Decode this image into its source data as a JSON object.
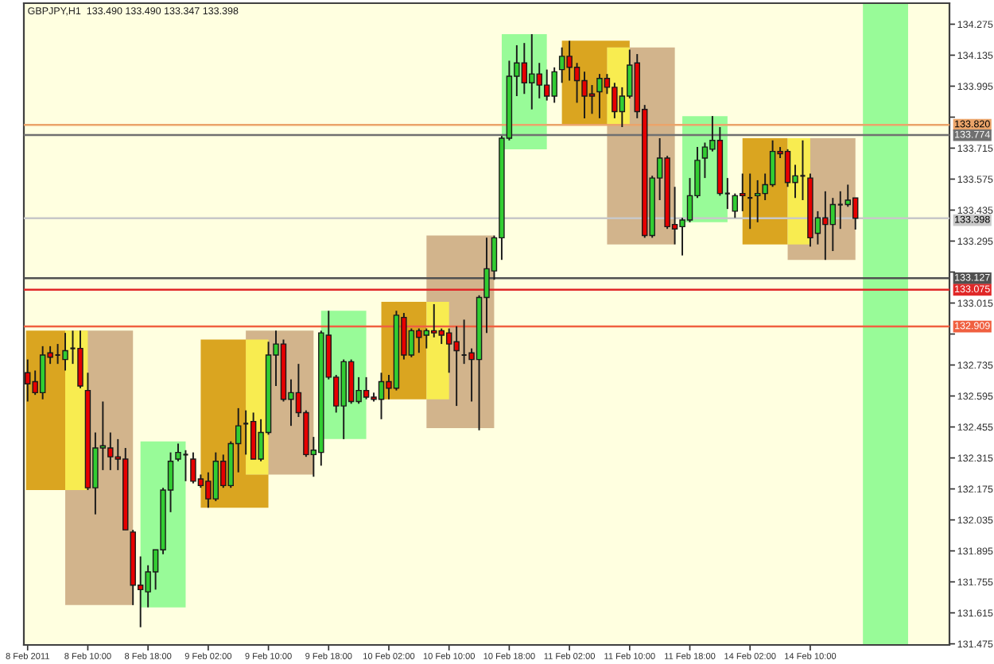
{
  "chart_data": {
    "type": "candlestick",
    "title": "GBPJPY,H1  133.490 133.490 133.347 133.398",
    "categories": [
      "8 Feb 2011",
      null,
      null,
      null,
      null,
      null,
      null,
      null,
      "8 Feb 10:00",
      null,
      null,
      null,
      null,
      null,
      null,
      null,
      "8 Feb 18:00",
      null,
      null,
      null,
      null,
      null,
      null,
      null,
      "9 Feb 02:00",
      null,
      null,
      null,
      null,
      null,
      null,
      null,
      "9 Feb 10:00",
      null,
      null,
      null,
      null,
      null,
      null,
      null,
      "9 Feb 18:00",
      null,
      null,
      null,
      null,
      null,
      null,
      null,
      "10 Feb 02:00",
      null,
      null,
      null,
      null,
      null,
      null,
      null,
      "10 Feb 10:00",
      null,
      null,
      null,
      null,
      null,
      null,
      null,
      "10 Feb 18:00",
      null,
      null,
      null,
      null,
      null,
      null,
      null,
      "11 Feb 02:00",
      null,
      null,
      null,
      null,
      null,
      null,
      null,
      "11 Feb 10:00",
      null,
      null,
      null,
      null,
      null,
      null,
      null,
      "11 Feb 18:00",
      null,
      null,
      null,
      null,
      null,
      null,
      null,
      "14 Feb 02:00",
      null,
      null,
      null,
      null,
      null,
      null,
      null,
      "14 Feb 10:00",
      null,
      null,
      null,
      null,
      null,
      null,
      null,
      null,
      null,
      null,
      null,
      null,
      null,
      null,
      null,
      null,
      null,
      null
    ],
    "ohlc": [
      [
        132.7,
        132.76,
        132.57,
        132.65
      ],
      [
        132.66,
        132.71,
        132.6,
        132.61
      ],
      [
        132.61,
        132.82,
        132.58,
        132.78
      ],
      [
        132.79,
        132.82,
        132.74,
        132.77
      ],
      [
        132.78,
        132.83,
        132.74,
        132.78
      ],
      [
        132.76,
        132.88,
        132.71,
        132.8
      ],
      [
        132.81,
        132.89,
        132.74,
        132.81
      ],
      [
        132.81,
        132.89,
        132.63,
        132.64
      ],
      [
        132.62,
        132.7,
        132.17,
        132.18
      ],
      [
        132.18,
        132.43,
        132.06,
        132.36
      ],
      [
        132.36,
        132.57,
        132.26,
        132.37
      ],
      [
        132.36,
        132.43,
        132.26,
        132.32
      ],
      [
        132.32,
        132.4,
        132.26,
        132.31
      ],
      [
        132.31,
        132.36,
        131.99,
        131.99
      ],
      [
        131.98,
        131.99,
        131.65,
        131.74
      ],
      [
        131.74,
        131.87,
        131.55,
        131.72
      ],
      [
        131.71,
        131.83,
        131.64,
        131.8
      ],
      [
        131.8,
        131.9,
        131.72,
        131.9
      ],
      [
        131.9,
        132.18,
        131.88,
        132.17
      ],
      [
        132.17,
        132.34,
        132.07,
        132.3
      ],
      [
        132.31,
        132.38,
        132.3,
        132.34
      ],
      [
        132.33,
        132.35,
        132.21,
        132.33
      ],
      [
        132.31,
        132.34,
        132.2,
        132.21
      ],
      [
        132.22,
        132.24,
        132.18,
        132.19
      ],
      [
        132.21,
        132.25,
        132.09,
        132.13
      ],
      [
        132.13,
        132.34,
        132.12,
        132.3
      ],
      [
        132.3,
        132.33,
        132.18,
        132.19
      ],
      [
        132.19,
        132.39,
        132.18,
        132.38
      ],
      [
        132.38,
        132.54,
        132.25,
        132.46
      ],
      [
        132.47,
        132.53,
        132.33,
        132.47
      ],
      [
        132.48,
        132.52,
        132.31,
        132.31
      ],
      [
        132.31,
        132.49,
        132.3,
        132.43
      ],
      [
        132.43,
        132.84,
        132.42,
        132.78
      ],
      [
        132.78,
        132.89,
        132.64,
        132.83
      ],
      [
        132.83,
        132.85,
        132.57,
        132.58
      ],
      [
        132.58,
        132.67,
        132.46,
        132.61
      ],
      [
        132.61,
        132.74,
        132.5,
        132.52
      ],
      [
        132.52,
        132.53,
        132.32,
        132.33
      ],
      [
        132.33,
        132.41,
        132.23,
        132.35
      ],
      [
        132.34,
        132.89,
        132.28,
        132.88
      ],
      [
        132.87,
        132.98,
        132.67,
        132.68
      ],
      [
        132.68,
        132.69,
        132.52,
        132.55
      ],
      [
        132.55,
        132.76,
        132.4,
        132.75
      ],
      [
        132.75,
        132.76,
        132.56,
        132.57
      ],
      [
        132.57,
        132.68,
        132.56,
        132.62
      ],
      [
        132.62,
        132.68,
        132.58,
        132.59
      ],
      [
        132.59,
        132.61,
        132.57,
        132.58
      ],
      [
        132.58,
        132.7,
        132.49,
        132.66
      ],
      [
        132.66,
        132.69,
        132.58,
        132.63
      ],
      [
        132.63,
        132.98,
        132.62,
        132.96
      ],
      [
        132.95,
        132.97,
        132.76,
        132.78
      ],
      [
        132.78,
        132.9,
        132.77,
        132.89
      ],
      [
        132.89,
        132.9,
        132.79,
        132.86
      ],
      [
        132.87,
        132.9,
        132.81,
        132.89
      ],
      [
        132.89,
        133.01,
        132.86,
        132.88
      ],
      [
        132.89,
        132.9,
        132.83,
        132.87
      ],
      [
        132.88,
        132.9,
        132.7,
        132.83
      ],
      [
        132.84,
        132.91,
        132.55,
        132.8
      ],
      [
        132.78,
        132.94,
        132.74,
        132.78
      ],
      [
        132.79,
        132.81,
        132.57,
        132.76
      ],
      [
        132.76,
        133.05,
        132.44,
        133.04
      ],
      [
        133.04,
        133.31,
        132.88,
        133.17
      ],
      [
        133.16,
        133.32,
        133.12,
        133.31
      ],
      [
        133.31,
        133.77,
        133.21,
        133.76
      ],
      [
        133.76,
        134.11,
        133.75,
        134.04
      ],
      [
        134.04,
        134.18,
        133.95,
        134.1
      ],
      [
        134.1,
        134.19,
        133.96,
        134.01
      ],
      [
        134.01,
        134.23,
        133.89,
        134.05
      ],
      [
        134.05,
        134.1,
        133.94,
        134.0
      ],
      [
        134.0,
        134.07,
        133.93,
        133.95
      ],
      [
        133.95,
        134.08,
        133.92,
        134.06
      ],
      [
        134.07,
        134.17,
        134.01,
        134.13
      ],
      [
        134.13,
        134.2,
        134.02,
        134.08
      ],
      [
        134.08,
        134.1,
        133.92,
        134.02
      ],
      [
        134.02,
        134.06,
        133.85,
        133.95
      ],
      [
        133.96,
        134.0,
        133.87,
        133.95
      ],
      [
        133.97,
        134.05,
        133.85,
        134.03
      ],
      [
        134.03,
        134.05,
        133.96,
        133.99
      ],
      [
        133.99,
        134.01,
        133.85,
        133.88
      ],
      [
        133.88,
        133.99,
        133.81,
        133.95
      ],
      [
        133.95,
        134.16,
        133.94,
        134.09
      ],
      [
        134.1,
        134.14,
        133.85,
        133.88
      ],
      [
        133.89,
        133.91,
        133.31,
        133.32
      ],
      [
        133.32,
        133.59,
        133.31,
        133.58
      ],
      [
        133.58,
        133.76,
        133.48,
        133.67
      ],
      [
        133.67,
        133.68,
        133.35,
        133.36
      ],
      [
        133.37,
        133.54,
        133.28,
        133.35
      ],
      [
        133.36,
        133.4,
        133.23,
        133.39
      ],
      [
        133.39,
        133.58,
        133.38,
        133.5
      ],
      [
        133.5,
        133.72,
        133.49,
        133.66
      ],
      [
        133.67,
        133.74,
        133.58,
        133.72
      ],
      [
        133.71,
        133.86,
        133.7,
        133.75
      ],
      [
        133.75,
        133.81,
        133.5,
        133.51
      ],
      [
        133.51,
        133.58,
        133.44,
        133.51
      ],
      [
        133.43,
        133.51,
        133.4,
        133.5
      ],
      [
        133.51,
        133.6,
        133.43,
        133.5
      ],
      [
        133.49,
        133.6,
        133.35,
        133.49
      ],
      [
        133.5,
        133.57,
        133.38,
        133.51
      ],
      [
        133.51,
        133.6,
        133.48,
        133.55
      ],
      [
        133.55,
        133.75,
        133.54,
        133.7
      ],
      [
        133.7,
        133.72,
        133.67,
        133.69
      ],
      [
        133.7,
        133.71,
        133.54,
        133.56
      ],
      [
        133.56,
        133.64,
        133.49,
        133.59
      ],
      [
        133.59,
        133.75,
        133.48,
        133.59
      ],
      [
        133.58,
        133.6,
        133.27,
        133.31
      ],
      [
        133.33,
        133.43,
        133.28,
        133.4
      ],
      [
        133.4,
        133.52,
        133.21,
        133.37
      ],
      [
        133.37,
        133.49,
        133.25,
        133.46
      ],
      [
        133.46,
        133.52,
        133.35,
        133.46
      ],
      [
        133.46,
        133.55,
        133.45,
        133.48
      ],
      [
        133.49,
        133.49,
        133.347,
        133.398
      ],
      null,
      null,
      null,
      null,
      null,
      null,
      null,
      null,
      null,
      null,
      null,
      null
    ],
    "colors": [
      "#e60000",
      "#e60000",
      "#32cd32",
      "#e60000",
      "#1a1a1a",
      "#32cd32",
      "#1a1a1a",
      "#e60000",
      "#e60000",
      "#32cd32",
      "#32cd32",
      "#e60000",
      "#e60000",
      "#e60000",
      "#e60000",
      "#e60000",
      "#32cd32",
      "#32cd32",
      "#32cd32",
      "#32cd32",
      "#32cd32",
      "#1a1a1a",
      "#e60000",
      "#e60000",
      "#e60000",
      "#32cd32",
      "#e60000",
      "#32cd32",
      "#32cd32",
      "#1a1a1a",
      "#e60000",
      "#32cd32",
      "#32cd32",
      "#32cd32",
      "#e60000",
      "#32cd32",
      "#e60000",
      "#e60000",
      "#32cd32",
      "#32cd32",
      "#e60000",
      "#e60000",
      "#32cd32",
      "#e60000",
      "#32cd32",
      "#e60000",
      "#e60000",
      "#32cd32",
      "#e60000",
      "#32cd32",
      "#e60000",
      "#32cd32",
      "#e60000",
      "#32cd32",
      "#e60000",
      "#e60000",
      "#e60000",
      "#e60000",
      "#1a1a1a",
      "#e60000",
      "#32cd32",
      "#32cd32",
      "#32cd32",
      "#32cd32",
      "#32cd32",
      "#32cd32",
      "#e60000",
      "#32cd32",
      "#e60000",
      "#e60000",
      "#32cd32",
      "#32cd32",
      "#e60000",
      "#e60000",
      "#e60000",
      "#e60000",
      "#32cd32",
      "#e60000",
      "#e60000",
      "#32cd32",
      "#32cd32",
      "#e60000",
      "#e60000",
      "#32cd32",
      "#32cd32",
      "#e60000",
      "#e60000",
      "#32cd32",
      "#32cd32",
      "#32cd32",
      "#32cd32",
      "#32cd32",
      "#e60000",
      "#1a1a1a",
      "#32cd32",
      "#e60000",
      "#1a1a1a",
      "#32cd32",
      "#32cd32",
      "#32cd32",
      "#e60000",
      "#e60000",
      "#32cd32",
      "#1a1a1a",
      "#e60000",
      "#32cd32",
      "#e60000",
      "#32cd32",
      "#1a1a1a",
      "#32cd32",
      "#e60000",
      null,
      null,
      null,
      null,
      null,
      null,
      null,
      null,
      null,
      null,
      null,
      null
    ],
    "ref_lines": [
      {
        "axis": "y",
        "value": 133.82,
        "label": "133.820",
        "color": "#eba46a"
      },
      {
        "axis": "y",
        "value": 133.774,
        "label": "133.774",
        "color": "#707070"
      },
      {
        "axis": "y",
        "value": 133.398,
        "label": "133.398",
        "color": "#c8c8c8"
      },
      {
        "axis": "y",
        "value": 133.127,
        "label": "133.127",
        "color": "#505050"
      },
      {
        "axis": "y",
        "value": 133.075,
        "label": "133.075",
        "color": "#e02828"
      },
      {
        "axis": "y",
        "value": 132.909,
        "label": "132.909",
        "color": "#f06040"
      }
    ],
    "ylim": [
      131.47,
      134.37
    ],
    "yticks": [
      134.275,
      134.135,
      133.995,
      {
        "value": 133.855,
        "label": null
      },
      133.715,
      133.575,
      133.435,
      133.295,
      {
        "value": 133.155,
        "label": null
      },
      133.015,
      {
        "value": 132.875,
        "label": null
      },
      132.735,
      132.595,
      132.455,
      132.315,
      132.175,
      132.035,
      131.895,
      131.755,
      131.615,
      131.475
    ]
  }
}
